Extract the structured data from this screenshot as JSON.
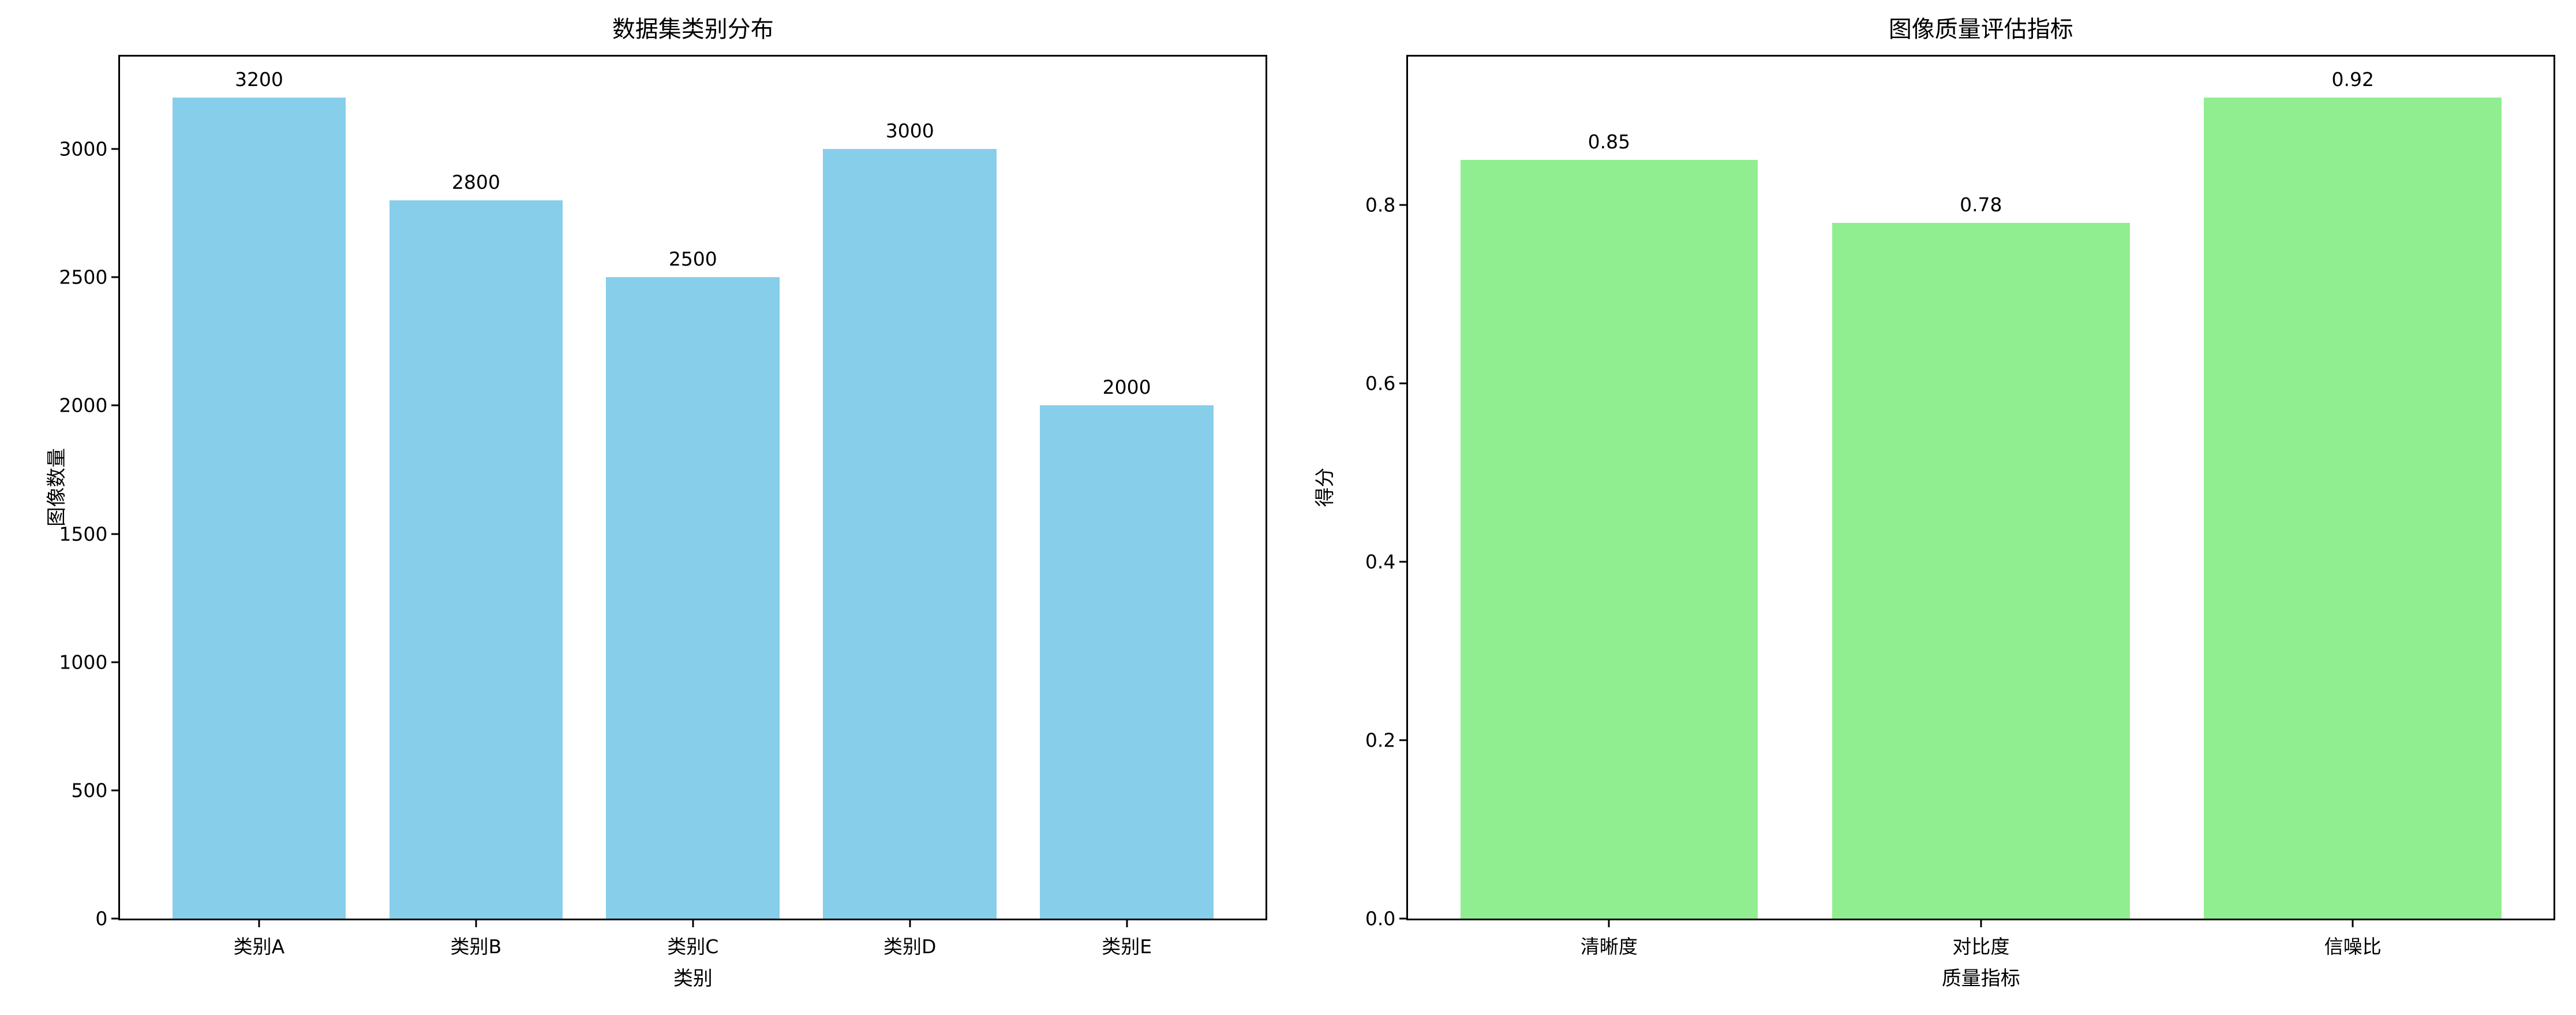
{
  "figure": {
    "background_color": "#ffffff",
    "text_color": "#000000"
  },
  "chart_data": [
    {
      "type": "bar",
      "title": "数据集类别分布",
      "xlabel": "类别",
      "ylabel": "图像数量",
      "categories": [
        "类别A",
        "类别B",
        "类别C",
        "类别D",
        "类别E"
      ],
      "values": [
        3200,
        2800,
        2500,
        3000,
        2000
      ],
      "value_labels": [
        "3200",
        "2800",
        "2500",
        "3000",
        "2000"
      ],
      "bar_color": "#87CEEB",
      "ylim": [
        0,
        3360
      ],
      "yticks": [
        0,
        500,
        1000,
        1500,
        2000,
        2500,
        3000
      ],
      "ytick_labels": [
        "0",
        "500",
        "1000",
        "1500",
        "2000",
        "2500",
        "3000"
      ],
      "grid": false,
      "legend": "none",
      "bar_width_units": 0.8
    },
    {
      "type": "bar",
      "title": "图像质量评估指标",
      "xlabel": "质量指标",
      "ylabel": "得分",
      "categories": [
        "清晰度",
        "对比度",
        "信噪比"
      ],
      "values": [
        0.85,
        0.78,
        0.92
      ],
      "value_labels": [
        "0.85",
        "0.78",
        "0.92"
      ],
      "bar_color": "#90EE90",
      "ylim": [
        0,
        0.966
      ],
      "yticks": [
        0,
        0.2,
        0.4,
        0.6,
        0.8
      ],
      "ytick_labels": [
        "0.0",
        "0.2",
        "0.4",
        "0.6",
        "0.8"
      ],
      "grid": false,
      "legend": "none",
      "bar_width_units": 0.8
    }
  ]
}
